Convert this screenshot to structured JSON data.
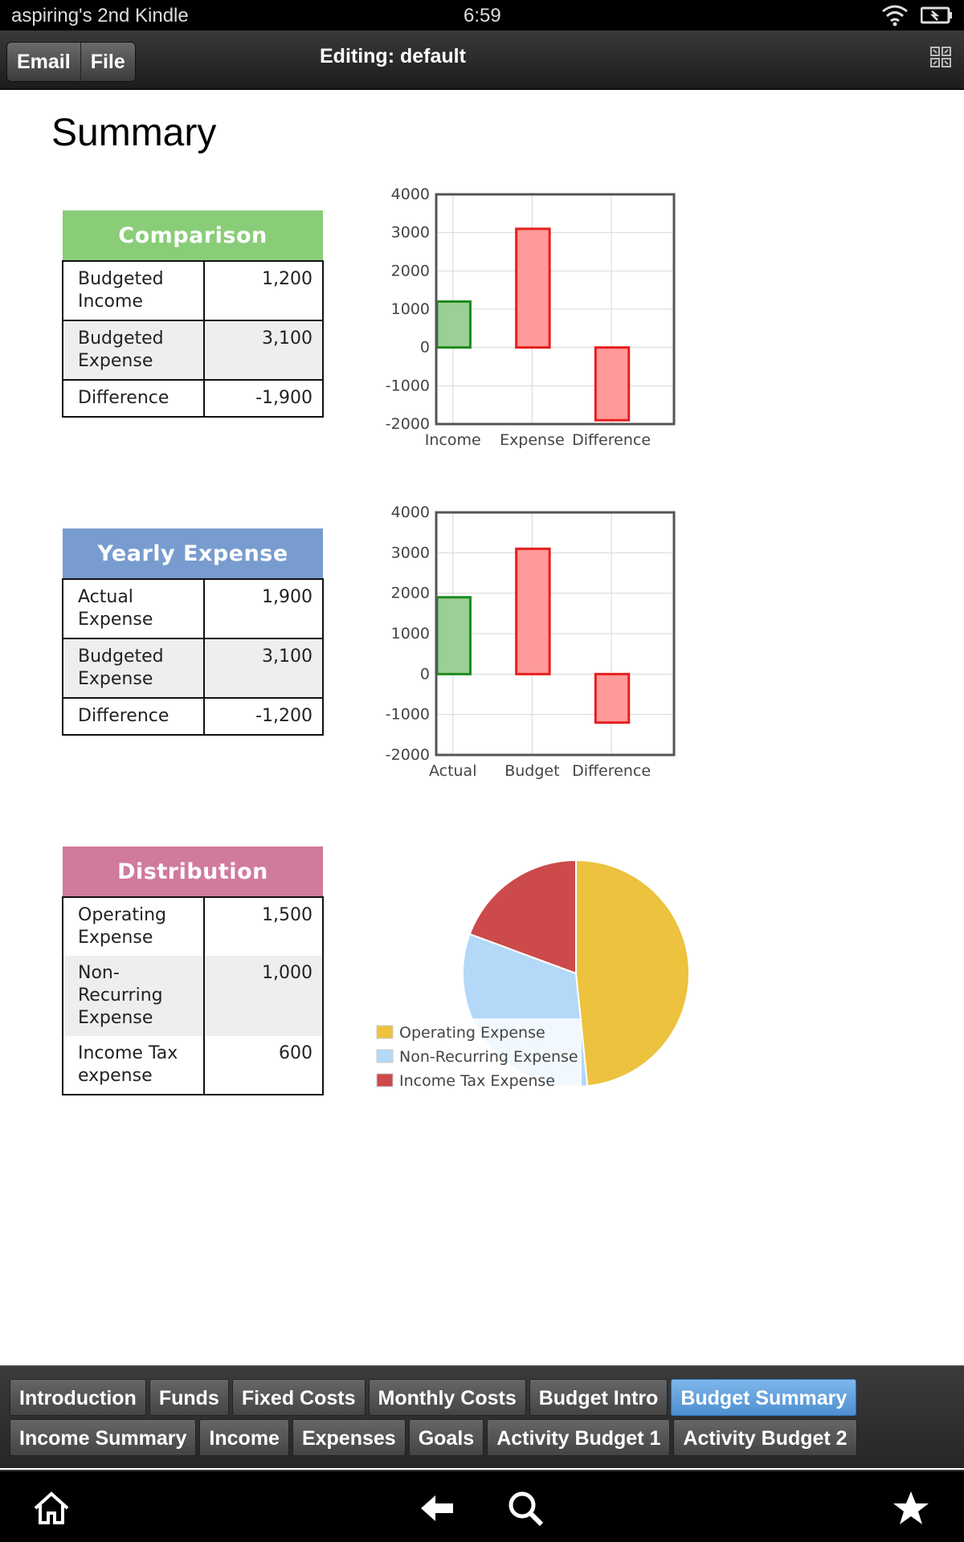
{
  "status_bar": {
    "device_name": "aspiring's 2nd Kindle",
    "time": "6:59"
  },
  "toolbar": {
    "email_label": "Email",
    "file_label": "File",
    "title": "Editing: default"
  },
  "page": {
    "title": "Summary"
  },
  "comparison": {
    "header": "Comparison",
    "header_color": "#8acd78",
    "rows": [
      {
        "label": "Budgeted Income",
        "value": "1,200"
      },
      {
        "label": "Budgeted Expense",
        "value": "3,100"
      },
      {
        "label": "Difference",
        "value": "-1,900"
      }
    ]
  },
  "yearly_expense": {
    "header": "Yearly Expense",
    "header_color": "#789ccf",
    "rows": [
      {
        "label": "Actual Expense",
        "value": "1,900"
      },
      {
        "label": "Budgeted Expense",
        "value": "3,100"
      },
      {
        "label": "Difference",
        "value": "-1,200"
      }
    ]
  },
  "distribution": {
    "header": "Distribution",
    "header_color": "#d07a9c",
    "rows": [
      {
        "label": "Operating Expense",
        "value": "1,500"
      },
      {
        "label": "Non-Recurring Expense",
        "value": "1,000"
      },
      {
        "label": "Income Tax expense",
        "value": "600"
      }
    ]
  },
  "chart_data": [
    {
      "type": "bar",
      "categories": [
        "Income",
        "Expense",
        "Difference"
      ],
      "values": [
        1200,
        3100,
        -1900
      ],
      "ylim": [
        -2000,
        4000
      ],
      "yticks": [
        "4000",
        "3000",
        "2000",
        "1000",
        "0",
        "-1000",
        "-2000"
      ],
      "bar_colors": [
        "green",
        "red",
        "red"
      ],
      "grid": true
    },
    {
      "type": "bar",
      "categories": [
        "Actual",
        "Budget",
        "Difference"
      ],
      "values": [
        1900,
        3100,
        -1200
      ],
      "ylim": [
        -2000,
        4000
      ],
      "yticks": [
        "4000",
        "3000",
        "2000",
        "1000",
        "0",
        "-1000",
        "-2000"
      ],
      "bar_colors": [
        "green",
        "red",
        "red"
      ],
      "grid": true
    },
    {
      "type": "pie",
      "categories": [
        "Operating Expense",
        "Non-Recurring Expense",
        "Income Tax Expense"
      ],
      "values": [
        1500,
        1000,
        600
      ],
      "colors": [
        "#ecc23e",
        "#b3d8f8",
        "#cc4a4a"
      ],
      "legend": "bottom-left"
    }
  ],
  "tabs": {
    "row1": [
      "Introduction",
      "Funds",
      "Fixed Costs",
      "Monthly Costs",
      "Budget Intro",
      "Budget Summary"
    ],
    "row2": [
      "Income Summary",
      "Income",
      "Expenses",
      "Goals",
      "Activity Budget 1",
      "Activity Budget 2"
    ],
    "active": "Budget Summary"
  }
}
